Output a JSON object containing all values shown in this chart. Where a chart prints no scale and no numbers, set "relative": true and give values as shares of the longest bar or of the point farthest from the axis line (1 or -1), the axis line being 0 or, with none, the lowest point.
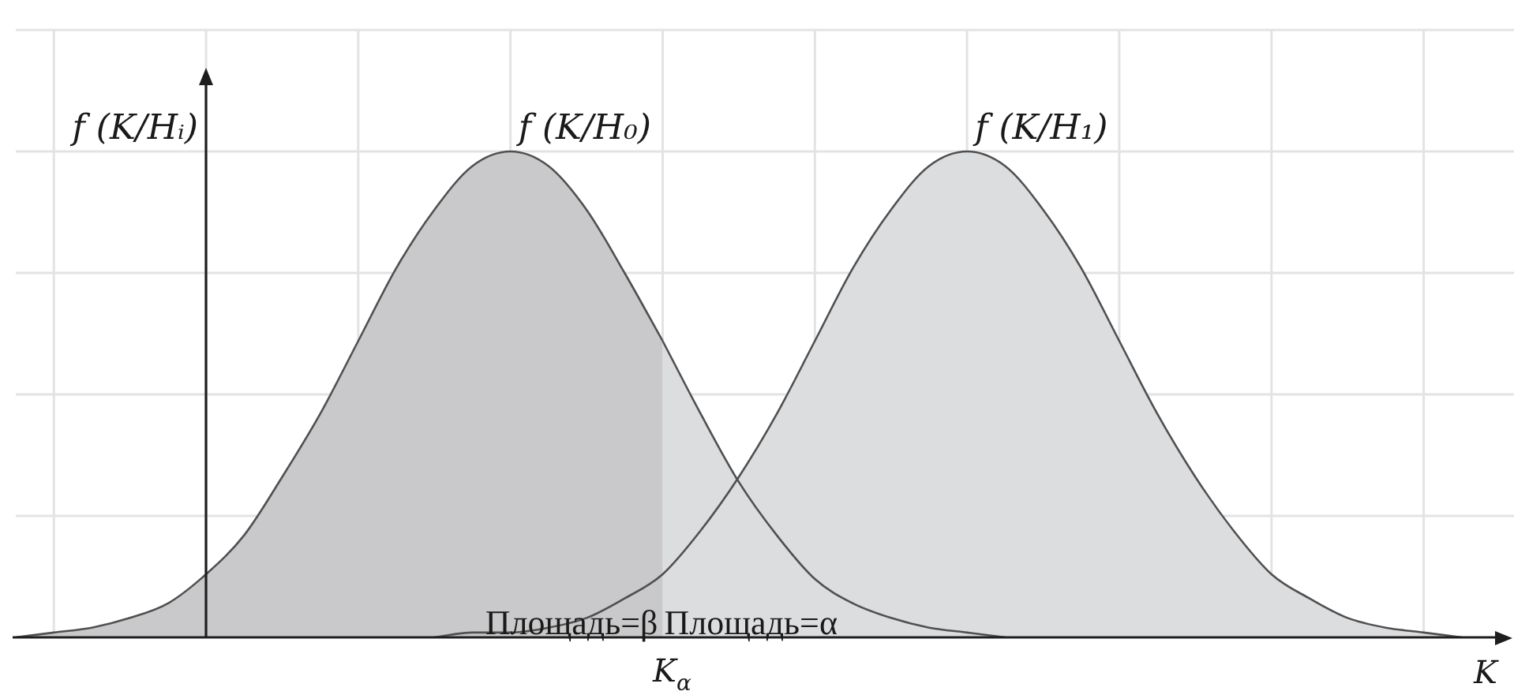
{
  "chart_data": {
    "type": "area",
    "relative": true,
    "grid": true,
    "ylabel": "f (K/Hᵢ)",
    "xlabel": "K",
    "categories": [
      null,
      null,
      null,
      null,
      null,
      null,
      null,
      null,
      null,
      null,
      null,
      null,
      null,
      null,
      null,
      null,
      null,
      null,
      null,
      null,
      null,
      null,
      null,
      null,
      null,
      null,
      null,
      null,
      null,
      null,
      null,
      null,
      null,
      null,
      null,
      null,
      null,
      null,
      null,
      null
    ],
    "series": [
      {
        "name": "f (K/H₀)",
        "color": "#c9c9cb",
        "values": [
          0,
          0.01,
          0.02,
          0.04,
          0.07,
          0.13,
          0.21,
          0.33,
          0.46,
          0.61,
          0.76,
          0.88,
          0.97,
          1,
          0.97,
          0.88,
          0.75,
          0.61,
          null,
          null,
          null,
          null,
          null,
          null,
          null,
          null,
          null,
          null,
          null,
          null,
          null,
          null,
          null,
          null,
          null,
          null,
          null,
          null,
          null,
          null
        ]
      },
      {
        "color": "#dcdddf",
        "values": [
          null,
          null,
          null,
          null,
          null,
          null,
          null,
          null,
          null,
          null,
          null,
          null,
          null,
          null,
          null,
          null,
          null,
          0.61,
          0.46,
          0.32,
          0.21,
          0.12,
          0.07,
          0.04,
          0.02,
          0.01,
          0,
          null,
          null,
          null,
          null,
          null,
          null,
          null,
          null,
          null,
          null,
          null,
          null,
          null
        ]
      },
      {
        "name": "f (K/H₁)",
        "color": "#dcdddf",
        "values": [
          null,
          null,
          null,
          null,
          null,
          null,
          null,
          null,
          null,
          null,
          null,
          0,
          0.01,
          0.01,
          0.02,
          0.04,
          0.08,
          0.13,
          0.22,
          0.33,
          0.46,
          0.61,
          0.76,
          0.88,
          0.97,
          1,
          0.97,
          0.88,
          0.76,
          0.61,
          0.46,
          0.33,
          0.22,
          0.13,
          0.08,
          0.04,
          0.02,
          0.01,
          0,
          null
        ]
      }
    ],
    "annotations": [
      "K$_{α}$",
      "Площадь=β",
      "Площадь=α"
    ]
  }
}
